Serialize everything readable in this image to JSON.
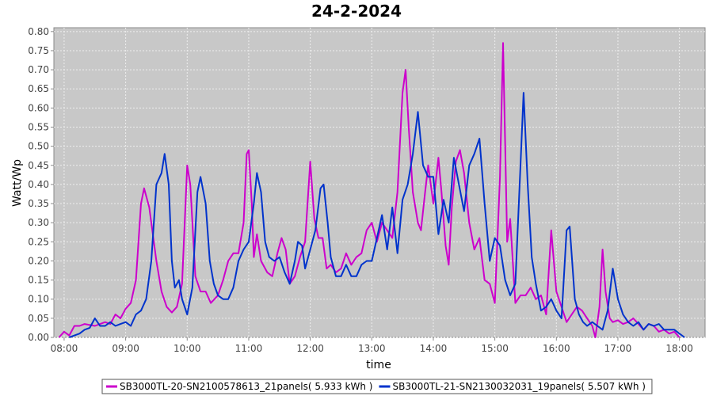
{
  "chart_data": {
    "type": "line",
    "title": "24-2-2024",
    "xlabel": "time",
    "ylabel": "Watt/Wp",
    "xlim": [
      "07:50",
      "18:25"
    ],
    "ylim": [
      0,
      0.81
    ],
    "x_ticks": [
      "08:00",
      "09:00",
      "10:00",
      "11:00",
      "12:00",
      "13:00",
      "14:00",
      "15:00",
      "16:00",
      "17:00",
      "18:00"
    ],
    "y_ticks": [
      "0.00",
      "0.05",
      "0.10",
      "0.15",
      "0.20",
      "0.25",
      "0.30",
      "0.35",
      "0.40",
      "0.45",
      "0.50",
      "0.55",
      "0.60",
      "0.65",
      "0.70",
      "0.75",
      "0.80"
    ],
    "grid": true,
    "legend_position": "bottom",
    "background": "#c8c8c8",
    "series": [
      {
        "name": "SB3000TL-20-SN2100578613_21panels( 5.933 kWh )",
        "color": "#cc00cc",
        "points": [
          [
            "07:55",
            0.0
          ],
          [
            "08:00",
            0.015
          ],
          [
            "08:05",
            0.005
          ],
          [
            "08:10",
            0.03
          ],
          [
            "08:15",
            0.03
          ],
          [
            "08:20",
            0.035
          ],
          [
            "08:30",
            0.03
          ],
          [
            "08:40",
            0.04
          ],
          [
            "08:45",
            0.035
          ],
          [
            "08:50",
            0.06
          ],
          [
            "08:55",
            0.05
          ],
          [
            "09:00",
            0.075
          ],
          [
            "09:05",
            0.09
          ],
          [
            "09:10",
            0.15
          ],
          [
            "09:15",
            0.35
          ],
          [
            "09:18",
            0.39
          ],
          [
            "09:23",
            0.34
          ],
          [
            "09:30",
            0.2
          ],
          [
            "09:35",
            0.12
          ],
          [
            "09:40",
            0.08
          ],
          [
            "09:45",
            0.065
          ],
          [
            "09:50",
            0.08
          ],
          [
            "09:55",
            0.14
          ],
          [
            "10:00",
            0.45
          ],
          [
            "10:03",
            0.4
          ],
          [
            "10:08",
            0.16
          ],
          [
            "10:13",
            0.12
          ],
          [
            "10:18",
            0.12
          ],
          [
            "10:23",
            0.09
          ],
          [
            "10:30",
            0.11
          ],
          [
            "10:35",
            0.15
          ],
          [
            "10:40",
            0.2
          ],
          [
            "10:45",
            0.22
          ],
          [
            "10:50",
            0.22
          ],
          [
            "10:55",
            0.3
          ],
          [
            "10:58",
            0.48
          ],
          [
            "11:00",
            0.49
          ],
          [
            "11:03",
            0.35
          ],
          [
            "11:05",
            0.21
          ],
          [
            "11:08",
            0.27
          ],
          [
            "11:12",
            0.2
          ],
          [
            "11:18",
            0.17
          ],
          [
            "11:23",
            0.16
          ],
          [
            "11:28",
            0.22
          ],
          [
            "11:32",
            0.26
          ],
          [
            "11:36",
            0.23
          ],
          [
            "11:40",
            0.14
          ],
          [
            "11:45",
            0.16
          ],
          [
            "11:50",
            0.21
          ],
          [
            "11:55",
            0.25
          ],
          [
            "12:00",
            0.46
          ],
          [
            "12:04",
            0.31
          ],
          [
            "12:08",
            0.26
          ],
          [
            "12:12",
            0.26
          ],
          [
            "12:16",
            0.18
          ],
          [
            "12:20",
            0.19
          ],
          [
            "12:25",
            0.17
          ],
          [
            "12:30",
            0.18
          ],
          [
            "12:35",
            0.22
          ],
          [
            "12:40",
            0.19
          ],
          [
            "12:45",
            0.21
          ],
          [
            "12:50",
            0.22
          ],
          [
            "12:55",
            0.28
          ],
          [
            "13:00",
            0.3
          ],
          [
            "13:05",
            0.25
          ],
          [
            "13:10",
            0.3
          ],
          [
            "13:15",
            0.28
          ],
          [
            "13:20",
            0.26
          ],
          [
            "13:25",
            0.38
          ],
          [
            "13:30",
            0.64
          ],
          [
            "13:33",
            0.7
          ],
          [
            "13:36",
            0.55
          ],
          [
            "13:40",
            0.38
          ],
          [
            "13:45",
            0.3
          ],
          [
            "13:48",
            0.28
          ],
          [
            "13:52",
            0.38
          ],
          [
            "13:55",
            0.45
          ],
          [
            "14:00",
            0.35
          ],
          [
            "14:05",
            0.47
          ],
          [
            "14:08",
            0.38
          ],
          [
            "14:12",
            0.24
          ],
          [
            "14:15",
            0.19
          ],
          [
            "14:18",
            0.34
          ],
          [
            "14:22",
            0.46
          ],
          [
            "14:26",
            0.49
          ],
          [
            "14:30",
            0.43
          ],
          [
            "14:35",
            0.3
          ],
          [
            "14:40",
            0.23
          ],
          [
            "14:45",
            0.26
          ],
          [
            "14:50",
            0.15
          ],
          [
            "14:55",
            0.14
          ],
          [
            "15:00",
            0.09
          ],
          [
            "15:05",
            0.42
          ],
          [
            "15:08",
            0.77
          ],
          [
            "15:12",
            0.25
          ],
          [
            "15:15",
            0.31
          ],
          [
            "15:20",
            0.09
          ],
          [
            "15:25",
            0.11
          ],
          [
            "15:30",
            0.11
          ],
          [
            "15:35",
            0.13
          ],
          [
            "15:40",
            0.1
          ],
          [
            "15:45",
            0.11
          ],
          [
            "15:50",
            0.06
          ],
          [
            "15:55",
            0.28
          ],
          [
            "16:00",
            0.12
          ],
          [
            "16:05",
            0.08
          ],
          [
            "16:10",
            0.04
          ],
          [
            "16:15",
            0.06
          ],
          [
            "16:20",
            0.08
          ],
          [
            "16:25",
            0.07
          ],
          [
            "16:30",
            0.05
          ],
          [
            "16:35",
            0.03
          ],
          [
            "16:38",
            0.0
          ],
          [
            "16:42",
            0.08
          ],
          [
            "16:45",
            0.23
          ],
          [
            "16:48",
            0.12
          ],
          [
            "16:52",
            0.05
          ],
          [
            "16:55",
            0.04
          ],
          [
            "17:00",
            0.045
          ],
          [
            "17:05",
            0.035
          ],
          [
            "17:10",
            0.04
          ],
          [
            "17:15",
            0.05
          ],
          [
            "17:20",
            0.035
          ],
          [
            "17:25",
            0.02
          ],
          [
            "17:30",
            0.035
          ],
          [
            "17:35",
            0.03
          ],
          [
            "17:40",
            0.015
          ],
          [
            "17:45",
            0.02
          ],
          [
            "17:50",
            0.01
          ],
          [
            "17:55",
            0.015
          ],
          [
            "18:00",
            0.0
          ]
        ]
      },
      {
        "name": "SB3000TL-21-SN2130032031_19panels( 5.507 kWh )",
        "color": "#0033cc",
        "points": [
          [
            "08:05",
            0.0
          ],
          [
            "08:10",
            0.005
          ],
          [
            "08:15",
            0.01
          ],
          [
            "08:20",
            0.02
          ],
          [
            "08:25",
            0.025
          ],
          [
            "08:30",
            0.05
          ],
          [
            "08:35",
            0.03
          ],
          [
            "08:40",
            0.03
          ],
          [
            "08:45",
            0.04
          ],
          [
            "08:50",
            0.03
          ],
          [
            "08:55",
            0.035
          ],
          [
            "09:00",
            0.04
          ],
          [
            "09:05",
            0.03
          ],
          [
            "09:10",
            0.06
          ],
          [
            "09:15",
            0.07
          ],
          [
            "09:20",
            0.1
          ],
          [
            "09:25",
            0.2
          ],
          [
            "09:30",
            0.4
          ],
          [
            "09:35",
            0.43
          ],
          [
            "09:38",
            0.48
          ],
          [
            "09:42",
            0.4
          ],
          [
            "09:45",
            0.2
          ],
          [
            "09:48",
            0.13
          ],
          [
            "09:52",
            0.15
          ],
          [
            "09:55",
            0.1
          ],
          [
            "10:00",
            0.06
          ],
          [
            "10:05",
            0.13
          ],
          [
            "10:10",
            0.38
          ],
          [
            "10:13",
            0.42
          ],
          [
            "10:18",
            0.35
          ],
          [
            "10:22",
            0.2
          ],
          [
            "10:26",
            0.14
          ],
          [
            "10:30",
            0.11
          ],
          [
            "10:35",
            0.1
          ],
          [
            "10:40",
            0.1
          ],
          [
            "10:45",
            0.13
          ],
          [
            "10:50",
            0.2
          ],
          [
            "10:55",
            0.23
          ],
          [
            "11:00",
            0.25
          ],
          [
            "11:05",
            0.35
          ],
          [
            "11:08",
            0.43
          ],
          [
            "11:12",
            0.38
          ],
          [
            "11:16",
            0.25
          ],
          [
            "11:20",
            0.21
          ],
          [
            "11:25",
            0.2
          ],
          [
            "11:30",
            0.21
          ],
          [
            "11:35",
            0.17
          ],
          [
            "11:40",
            0.14
          ],
          [
            "11:45",
            0.2
          ],
          [
            "11:48",
            0.25
          ],
          [
            "11:52",
            0.24
          ],
          [
            "11:55",
            0.18
          ],
          [
            "12:00",
            0.23
          ],
          [
            "12:05",
            0.28
          ],
          [
            "12:10",
            0.39
          ],
          [
            "12:13",
            0.4
          ],
          [
            "12:17",
            0.3
          ],
          [
            "12:20",
            0.21
          ],
          [
            "12:25",
            0.16
          ],
          [
            "12:30",
            0.16
          ],
          [
            "12:35",
            0.19
          ],
          [
            "12:40",
            0.16
          ],
          [
            "12:45",
            0.16
          ],
          [
            "12:50",
            0.19
          ],
          [
            "12:55",
            0.2
          ],
          [
            "13:00",
            0.2
          ],
          [
            "13:05",
            0.26
          ],
          [
            "13:10",
            0.32
          ],
          [
            "13:15",
            0.23
          ],
          [
            "13:20",
            0.34
          ],
          [
            "13:25",
            0.22
          ],
          [
            "13:30",
            0.36
          ],
          [
            "13:35",
            0.4
          ],
          [
            "13:40",
            0.48
          ],
          [
            "13:45",
            0.59
          ],
          [
            "13:50",
            0.45
          ],
          [
            "13:55",
            0.42
          ],
          [
            "14:00",
            0.42
          ],
          [
            "14:05",
            0.27
          ],
          [
            "14:10",
            0.36
          ],
          [
            "14:15",
            0.3
          ],
          [
            "14:20",
            0.47
          ],
          [
            "14:25",
            0.4
          ],
          [
            "14:30",
            0.33
          ],
          [
            "14:35",
            0.45
          ],
          [
            "14:40",
            0.48
          ],
          [
            "14:45",
            0.52
          ],
          [
            "14:50",
            0.35
          ],
          [
            "14:55",
            0.2
          ],
          [
            "15:00",
            0.26
          ],
          [
            "15:05",
            0.24
          ],
          [
            "15:10",
            0.15
          ],
          [
            "15:15",
            0.11
          ],
          [
            "15:20",
            0.14
          ],
          [
            "15:25",
            0.45
          ],
          [
            "15:28",
            0.64
          ],
          [
            "15:32",
            0.4
          ],
          [
            "15:36",
            0.21
          ],
          [
            "15:40",
            0.14
          ],
          [
            "15:45",
            0.07
          ],
          [
            "15:50",
            0.08
          ],
          [
            "15:55",
            0.1
          ],
          [
            "16:00",
            0.07
          ],
          [
            "16:05",
            0.05
          ],
          [
            "16:10",
            0.28
          ],
          [
            "16:13",
            0.29
          ],
          [
            "16:18",
            0.1
          ],
          [
            "16:22",
            0.06
          ],
          [
            "16:26",
            0.04
          ],
          [
            "16:30",
            0.03
          ],
          [
            "16:35",
            0.04
          ],
          [
            "16:40",
            0.03
          ],
          [
            "16:45",
            0.02
          ],
          [
            "16:50",
            0.07
          ],
          [
            "16:55",
            0.18
          ],
          [
            "17:00",
            0.1
          ],
          [
            "17:05",
            0.06
          ],
          [
            "17:10",
            0.04
          ],
          [
            "17:15",
            0.03
          ],
          [
            "17:20",
            0.04
          ],
          [
            "17:25",
            0.02
          ],
          [
            "17:30",
            0.035
          ],
          [
            "17:35",
            0.03
          ],
          [
            "17:40",
            0.035
          ],
          [
            "17:45",
            0.02
          ],
          [
            "17:50",
            0.02
          ],
          [
            "17:55",
            0.02
          ],
          [
            "18:00",
            0.01
          ],
          [
            "18:05",
            0.0
          ]
        ]
      }
    ]
  }
}
